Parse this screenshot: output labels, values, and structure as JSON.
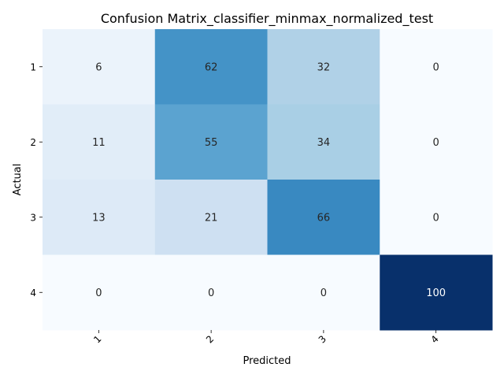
{
  "chart_data": {
    "type": "heatmap",
    "title": "Confusion Matrix_classifier_minmax_normalized_test",
    "xlabel": "Predicted",
    "ylabel": "Actual",
    "x_categories": [
      "1",
      "2",
      "3",
      "4"
    ],
    "y_categories": [
      "1",
      "2",
      "3",
      "4"
    ],
    "values": [
      [
        6,
        62,
        32,
        0
      ],
      [
        11,
        55,
        34,
        0
      ],
      [
        13,
        21,
        66,
        0
      ],
      [
        0,
        0,
        0,
        100
      ]
    ],
    "vmin": 0,
    "vmax": 100,
    "colormap": "Blues",
    "annotated": true,
    "colorbar": false,
    "x_tick_rotation": 45
  }
}
